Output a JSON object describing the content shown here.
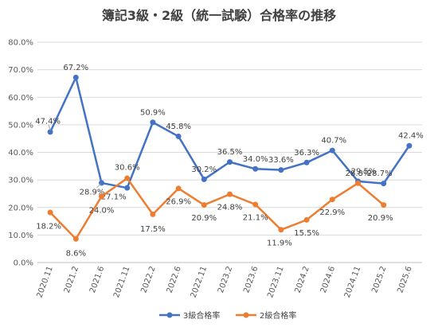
{
  "chart_data": {
    "type": "line",
    "title": "簿記3級・2級（統一試験）合格率の推移",
    "categories": [
      "2020.11",
      "2021.2",
      "2021.6",
      "2021.11",
      "2022.2",
      "2022.6",
      "2022.11",
      "2023.2",
      "2023.6",
      "2023.11",
      "2024.2",
      "2024.6",
      "2024.11",
      "2025.2",
      "2025.6"
    ],
    "y_ticks": [
      "0.0%",
      "10.0%",
      "20.0%",
      "30.0%",
      "40.0%",
      "50.0%",
      "60.0%",
      "70.0%",
      "80.0%"
    ],
    "ylim": [
      0,
      80
    ],
    "y_unit": "%",
    "grid": true,
    "legend_position": "bottom",
    "series": [
      {
        "name": "3級合格率",
        "color": "#4472C4",
        "values": [
          47.4,
          67.2,
          28.9,
          27.1,
          50.9,
          45.8,
          30.2,
          36.5,
          34.0,
          33.6,
          36.3,
          40.7,
          29.5,
          28.7,
          42.4
        ],
        "labels": [
          "47.4%",
          "67.2%",
          "28.9%",
          "27.1%",
          "50.9%",
          "45.8%",
          "30.2%",
          "36.5%",
          "34.0%",
          "33.6%",
          "36.3%",
          "40.7%",
          "29.5%",
          "28.7%",
          "42.4%"
        ]
      },
      {
        "name": "2級合格率",
        "color": "#ED7D31",
        "values": [
          18.2,
          8.6,
          24.0,
          30.6,
          17.5,
          26.9,
          20.9,
          24.8,
          21.1,
          11.9,
          15.5,
          22.9,
          28.8,
          20.9,
          null
        ],
        "labels": [
          "18.2%",
          "8.6%",
          "24.0%",
          "30.6%",
          "17.5%",
          "26.9%",
          "20.9%",
          "24.8%",
          "21.1%",
          "11.9%",
          "15.5%",
          "22.9%",
          "28.8%",
          "20.9%",
          ""
        ]
      }
    ]
  }
}
